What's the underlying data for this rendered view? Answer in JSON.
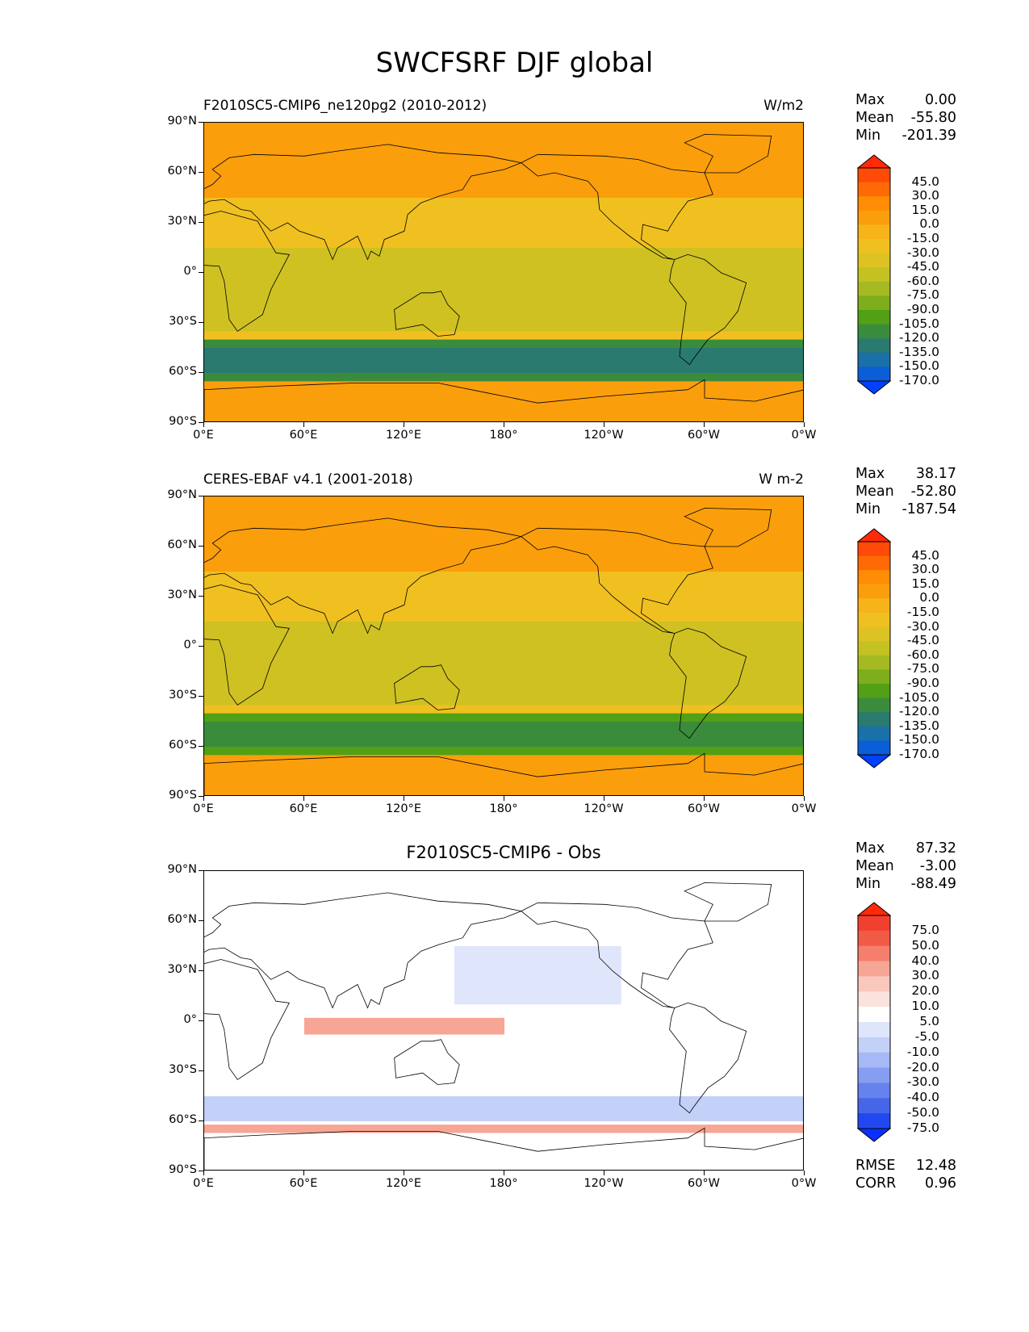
{
  "title": "SWCFSRF DJF global",
  "panels": [
    {
      "id": "model",
      "left_title": "F2010SC5-CMIP6_ne120pg2 (2010-2012)",
      "center_title": "",
      "units": "W/m2",
      "stats": [
        {
          "label": "Max",
          "value": "0.00"
        },
        {
          "label": "Mean",
          "value": "-55.80"
        },
        {
          "label": "Min",
          "value": "-201.39"
        }
      ],
      "colorbar_labels": [
        "45.0",
        "30.0",
        "15.0",
        "0.0",
        "-15.0",
        "-30.0",
        "-45.0",
        "-60.0",
        "-75.0",
        "-90.0",
        "-105.0",
        "-120.0",
        "-135.0",
        "-150.0",
        "-170.0"
      ],
      "colorbar_colors": [
        "#ff2a0a",
        "#ff4a08",
        "#ff6a06",
        "#ff8c04",
        "#fb9e0c",
        "#f7b41a",
        "#f0c020",
        "#dcc222",
        "#c4c223",
        "#a5ba22",
        "#7fae1c",
        "#52a015",
        "#3a8c3c",
        "#2a7a70",
        "#1a70a8",
        "#0a5ed8",
        "#0040ff"
      ],
      "regions": [
        {
          "name": "northern-subtropics",
          "value": -15
        },
        {
          "name": "tropics",
          "value": -45
        },
        {
          "name": "southern-ocean-storm-track",
          "value": -150
        },
        {
          "name": "antarctica",
          "value": -15
        }
      ],
      "xticks": [
        "0°E",
        "60°E",
        "120°E",
        "180°",
        "120°W",
        "60°W",
        "0°W"
      ],
      "yticks": [
        "90°N",
        "60°N",
        "30°N",
        "0°",
        "30°S",
        "60°S",
        "90°S"
      ],
      "extra_stats": []
    },
    {
      "id": "obs",
      "left_title": "CERES-EBAF v4.1 (2001-2018)",
      "center_title": "",
      "units": "W m-2",
      "stats": [
        {
          "label": "Max",
          "value": "38.17"
        },
        {
          "label": "Mean",
          "value": "-52.80"
        },
        {
          "label": "Min",
          "value": "-187.54"
        }
      ],
      "colorbar_labels": [
        "45.0",
        "30.0",
        "15.0",
        "0.0",
        "-15.0",
        "-30.0",
        "-45.0",
        "-60.0",
        "-75.0",
        "-90.0",
        "-105.0",
        "-120.0",
        "-135.0",
        "-150.0",
        "-170.0"
      ],
      "colorbar_colors": [
        "#ff2a0a",
        "#ff4a08",
        "#ff6a06",
        "#ff8c04",
        "#fb9e0c",
        "#f7b41a",
        "#f0c020",
        "#dcc222",
        "#c4c223",
        "#a5ba22",
        "#7fae1c",
        "#52a015",
        "#3a8c3c",
        "#2a7a70",
        "#1a70a8",
        "#0a5ed8",
        "#0040ff"
      ],
      "regions": [
        {
          "name": "northern-subtropics",
          "value": -15
        },
        {
          "name": "tropics",
          "value": -45
        },
        {
          "name": "southern-ocean-storm-track",
          "value": -135
        },
        {
          "name": "antarctica",
          "value": -15
        }
      ],
      "xticks": [
        "0°E",
        "60°E",
        "120°E",
        "180°",
        "120°W",
        "60°W",
        "0°W"
      ],
      "yticks": [
        "90°N",
        "60°N",
        "30°N",
        "0°",
        "30°S",
        "60°S",
        "90°S"
      ],
      "extra_stats": []
    },
    {
      "id": "diff",
      "left_title": "",
      "center_title": "F2010SC5-CMIP6 - Obs",
      "units": "",
      "stats": [
        {
          "label": "Max",
          "value": "87.32"
        },
        {
          "label": "Mean",
          "value": "-3.00"
        },
        {
          "label": "Min",
          "value": "-88.49"
        }
      ],
      "colorbar_labels": [
        "75.0",
        "50.0",
        "40.0",
        "30.0",
        "20.0",
        "10.0",
        "5.0",
        "-5.0",
        "-10.0",
        "-20.0",
        "-30.0",
        "-40.0",
        "-50.0",
        "-75.0"
      ],
      "colorbar_colors": [
        "#ff2a0a",
        "#f24030",
        "#f25a48",
        "#f57f6c",
        "#f7a595",
        "#f9c8bd",
        "#fbe2dc",
        "#ffffff",
        "#dfe6fb",
        "#c3d0f8",
        "#a6b8f5",
        "#869ef1",
        "#6682ec",
        "#4666e8",
        "#2047f0",
        "#0a30ff"
      ],
      "regions": [
        {
          "name": "background",
          "value": 0
        },
        {
          "name": "tropical-indian-ocean",
          "value": 20
        },
        {
          "name": "north-pacific",
          "value": -10
        },
        {
          "name": "southern-ocean",
          "value": -20
        },
        {
          "name": "antarctic-margin",
          "value": 20
        }
      ],
      "xticks": [
        "0°E",
        "60°E",
        "120°E",
        "180°",
        "120°W",
        "60°W",
        "0°W"
      ],
      "yticks": [
        "90°N",
        "60°N",
        "30°N",
        "0°",
        "30°S",
        "60°S",
        "90°S"
      ],
      "extra_stats": [
        {
          "label": "RMSE",
          "value": "12.48"
        },
        {
          "label": "CORR",
          "value": "0.96"
        }
      ]
    }
  ]
}
